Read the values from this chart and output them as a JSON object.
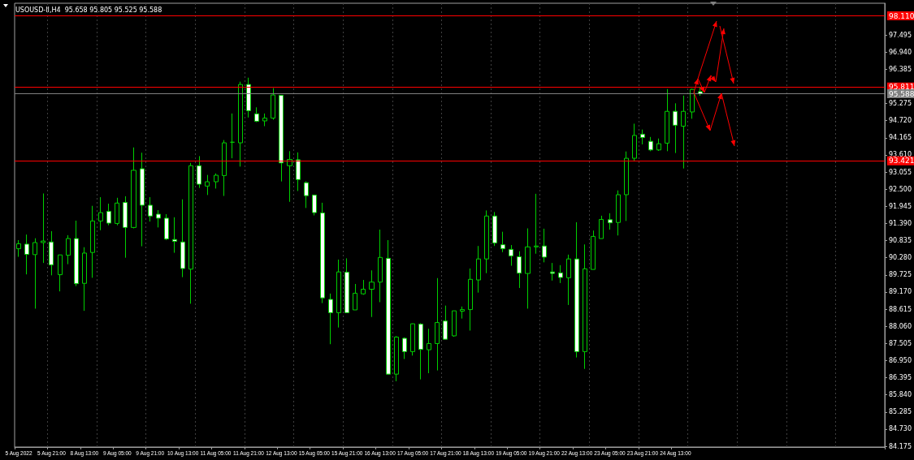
{
  "chart_data": {
    "type": "candlestick",
    "title": "USOUSD-II,H4  95.658 95.805 95.525 95.588",
    "categories": [
      "5 Aug 2022",
      null,
      null,
      null,
      "5 Aug 21:00",
      null,
      null,
      null,
      "8 Aug 13:00",
      null,
      null,
      null,
      "9 Aug 05:00",
      null,
      null,
      null,
      "9 Aug 21:00",
      null,
      null,
      null,
      "10 Aug 13:00",
      null,
      null,
      null,
      "11 Aug 05:00",
      null,
      null,
      null,
      "11 Aug 21:00",
      null,
      null,
      null,
      "12 Aug 13:00",
      null,
      null,
      null,
      "15 Aug 05:00",
      null,
      null,
      null,
      "15 Aug 21:00",
      null,
      null,
      null,
      "16 Aug 13:00",
      null,
      null,
      null,
      "17 Aug 05:00",
      null,
      null,
      null,
      "17 Aug 21:00",
      null,
      null,
      null,
      "18 Aug 13:00",
      null,
      null,
      null,
      "19 Aug 05:00",
      null,
      null,
      null,
      "19 Aug 21:00",
      null,
      null,
      null,
      "22 Aug 13:00",
      null,
      null,
      null,
      "23 Aug 05:00",
      null,
      null,
      null,
      "23 Aug 21:00",
      null,
      null,
      null,
      "24 Aug 13:00",
      null,
      null,
      null,
      null,
      null,
      null,
      null,
      null,
      null,
      null,
      null,
      null,
      null,
      null,
      null,
      null,
      null,
      null,
      null,
      null,
      null,
      null,
      null,
      null,
      null
    ],
    "ohlc": [
      [
        90.57,
        90.85,
        90.31,
        90.73
      ],
      [
        90.72,
        91.03,
        89.74,
        90.39
      ],
      [
        90.38,
        90.91,
        88.63,
        90.77
      ],
      [
        90.77,
        92.36,
        90.11,
        90.82
      ],
      [
        90.79,
        91.14,
        89.71,
        90.05
      ],
      [
        89.73,
        90.37,
        89.19,
        90.37
      ],
      [
        90.36,
        91.01,
        90.07,
        90.9
      ],
      [
        90.9,
        91.48,
        89.36,
        89.44
      ],
      [
        89.45,
        90.62,
        88.56,
        90.43
      ],
      [
        90.45,
        91.96,
        89.63,
        91.47
      ],
      [
        91.47,
        92.24,
        91.17,
        91.74
      ],
      [
        91.78,
        92.03,
        91.33,
        91.4
      ],
      [
        91.39,
        92.22,
        91.33,
        92.05
      ],
      [
        92.07,
        92.27,
        90.28,
        91.26
      ],
      [
        91.26,
        93.85,
        91.23,
        93.11
      ],
      [
        93.16,
        93.68,
        90.65,
        91.98
      ],
      [
        91.98,
        92.24,
        91.45,
        91.63
      ],
      [
        91.69,
        91.82,
        91.26,
        91.56
      ],
      [
        91.56,
        91.69,
        90.85,
        90.89
      ],
      [
        90.87,
        91.59,
        90.44,
        90.81
      ],
      [
        90.79,
        92.17,
        89.65,
        89.93
      ],
      [
        89.91,
        93.35,
        88.79,
        93.26
      ],
      [
        93.26,
        93.57,
        92.54,
        92.66
      ],
      [
        92.6,
        92.96,
        92.31,
        92.74
      ],
      [
        92.74,
        93.01,
        92.52,
        92.95
      ],
      [
        92.94,
        94.09,
        92.28,
        94.0
      ],
      [
        94.02,
        94.95,
        93.5,
        94.02
      ],
      [
        94.0,
        95.98,
        93.23,
        95.89
      ],
      [
        95.89,
        96.11,
        94.82,
        95.04
      ],
      [
        94.94,
        95.15,
        94.67,
        94.7
      ],
      [
        94.71,
        94.95,
        94.54,
        94.8
      ],
      [
        94.8,
        95.77,
        94.75,
        95.55
      ],
      [
        95.54,
        95.54,
        92.75,
        93.35
      ],
      [
        93.26,
        93.73,
        92.09,
        93.46
      ],
      [
        93.45,
        93.69,
        92.44,
        92.81
      ],
      [
        92.71,
        92.75,
        91.89,
        92.29
      ],
      [
        92.31,
        92.31,
        91.65,
        91.74
      ],
      [
        91.73,
        92.06,
        88.81,
        88.98
      ],
      [
        88.93,
        89.12,
        87.48,
        88.5
      ],
      [
        88.5,
        90.22,
        88.02,
        89.82
      ],
      [
        89.81,
        90.26,
        88.5,
        88.5
      ],
      [
        88.59,
        89.43,
        88.59,
        89.13
      ],
      [
        89.11,
        89.56,
        89.08,
        89.26
      ],
      [
        89.26,
        89.87,
        88.36,
        89.49
      ],
      [
        89.49,
        91.19,
        88.84,
        90.29
      ],
      [
        90.26,
        90.85,
        86.49,
        86.51
      ],
      [
        86.51,
        87.74,
        86.28,
        87.71
      ],
      [
        87.67,
        87.7,
        87.0,
        87.24
      ],
      [
        87.24,
        88.15,
        87.11,
        88.14
      ],
      [
        88.13,
        88.16,
        86.34,
        87.31
      ],
      [
        87.3,
        87.98,
        86.54,
        87.5
      ],
      [
        87.5,
        89.62,
        86.63,
        88.18
      ],
      [
        88.23,
        88.73,
        87.64,
        87.64
      ],
      [
        87.75,
        88.56,
        87.72,
        88.56
      ],
      [
        88.55,
        88.7,
        88.31,
        88.6
      ],
      [
        88.6,
        89.93,
        87.92,
        89.58
      ],
      [
        89.56,
        90.66,
        89.15,
        90.24
      ],
      [
        90.24,
        91.81,
        89.78,
        91.63
      ],
      [
        91.63,
        91.76,
        90.66,
        90.76
      ],
      [
        90.7,
        91.12,
        90.46,
        90.57
      ],
      [
        90.55,
        90.69,
        90.02,
        90.34
      ],
      [
        90.31,
        90.49,
        89.3,
        89.78
      ],
      [
        89.77,
        91.23,
        88.63,
        90.63
      ],
      [
        90.63,
        92.35,
        90.41,
        90.66
      ],
      [
        90.66,
        91.22,
        90.13,
        90.3
      ],
      [
        89.82,
        90.11,
        89.54,
        89.77
      ],
      [
        89.79,
        90.04,
        89.46,
        89.64
      ],
      [
        89.63,
        90.38,
        88.75,
        90.24
      ],
      [
        90.24,
        91.43,
        87.05,
        87.24
      ],
      [
        87.24,
        90.71,
        86.68,
        89.92
      ],
      [
        89.9,
        91.16,
        89.9,
        90.97
      ],
      [
        90.9,
        91.64,
        90.9,
        91.52
      ],
      [
        91.51,
        91.72,
        91.19,
        91.41
      ],
      [
        91.42,
        92.46,
        91.0,
        92.32
      ],
      [
        92.32,
        93.72,
        91.47,
        93.5
      ],
      [
        93.5,
        94.62,
        93.41,
        94.24
      ],
      [
        94.28,
        94.43,
        93.95,
        94.17
      ],
      [
        94.05,
        94.19,
        93.73,
        93.77
      ],
      [
        93.77,
        94.14,
        93.74,
        93.97
      ],
      [
        93.99,
        95.74,
        93.73,
        95.02
      ],
      [
        95.02,
        95.28,
        93.67,
        94.57
      ],
      [
        94.54,
        95.53,
        93.17,
        95.02
      ],
      [
        95.0,
        95.75,
        94.78,
        95.73
      ],
      [
        95.658,
        95.805,
        95.525,
        95.588
      ],
      null,
      null,
      null,
      null,
      null,
      null,
      null,
      null,
      null,
      null,
      null,
      null,
      null,
      null,
      null,
      null,
      null,
      null,
      null,
      null,
      null,
      null
    ],
    "color": "#00d000",
    "ylim": [
      84.15,
      98.52
    ],
    "yticks": [
      84.175,
      {
        "value": 84.73,
        "label": "84.730"
      },
      85.285,
      {
        "value": 85.84,
        "label": "85.840"
      },
      86.395,
      {
        "value": 86.95,
        "label": "86.950"
      },
      87.505,
      {
        "value": 88.06,
        "label": "88.060"
      },
      88.615,
      {
        "value": 89.17,
        "label": "89.170"
      },
      89.725,
      {
        "value": 90.28,
        "label": "90.280"
      },
      90.835,
      {
        "value": 91.39,
        "label": "91.390"
      },
      91.945,
      {
        "value": 92.5,
        "label": "92.500"
      },
      93.055,
      {
        "value": 93.61,
        "label": "93.610"
      },
      94.165,
      {
        "value": 94.72,
        "label": "94.720"
      },
      95.275,
      96.385,
      {
        "value": 96.94,
        "label": "96.940"
      },
      97.495
    ],
    "ref_lines": [
      {
        "axis": "y",
        "value": 98.11,
        "label": "98.110",
        "color": "#ff0000"
      },
      {
        "axis": "y",
        "value": 95.811,
        "label": "95.811",
        "color": "#ff0000"
      },
      {
        "axis": "y",
        "value": 95.588,
        "label": "95.588",
        "color": "#808080"
      },
      {
        "axis": "y",
        "value": 93.421,
        "label": "93.421",
        "color": "#ff0000"
      }
    ],
    "grid": "x"
  }
}
